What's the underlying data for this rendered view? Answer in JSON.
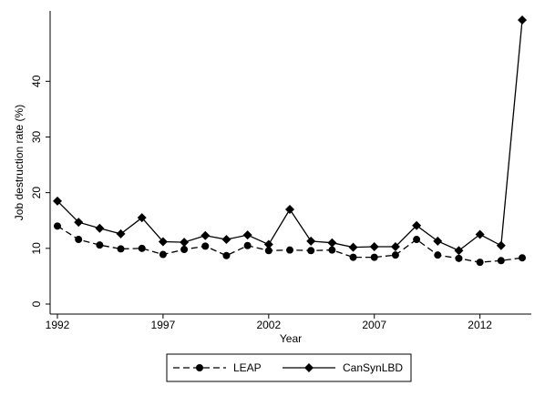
{
  "chart_data": {
    "type": "line",
    "title": "",
    "xlabel": "Year",
    "ylabel": "Job destruction rate (%)",
    "x": [
      1992,
      1993,
      1994,
      1995,
      1996,
      1997,
      1998,
      1999,
      2000,
      2001,
      2002,
      2003,
      2004,
      2005,
      2006,
      2007,
      2008,
      2009,
      2010,
      2011,
      2012,
      2013,
      2014
    ],
    "xlim": [
      1992,
      2014
    ],
    "ylim": [
      0,
      51
    ],
    "x_ticks": [
      1992,
      1997,
      2002,
      2007,
      2012
    ],
    "x_tick_labels": [
      "1992",
      "1997",
      "2002",
      "2007",
      "2012"
    ],
    "y_ticks": [
      0,
      10,
      20,
      30,
      40
    ],
    "y_tick_labels": [
      "0",
      "10",
      "20",
      "30",
      "40"
    ],
    "grid": false,
    "legend_position": "bottom",
    "series": [
      {
        "name": "LEAP",
        "line_style": "dashed",
        "marker": "circle",
        "color": "#000000",
        "values": [
          14.0,
          11.6,
          10.6,
          9.9,
          10.0,
          8.9,
          9.8,
          10.4,
          8.7,
          10.5,
          9.6,
          9.7,
          9.6,
          9.7,
          8.4,
          8.4,
          8.8,
          11.6,
          8.8,
          8.2,
          7.5,
          7.8,
          8.3
        ]
      },
      {
        "name": "CanSynLBD",
        "line_style": "solid",
        "marker": "diamond",
        "color": "#000000",
        "values": [
          18.5,
          14.7,
          13.6,
          12.6,
          15.5,
          11.2,
          11.1,
          12.3,
          11.6,
          12.4,
          10.7,
          17.0,
          11.3,
          11.0,
          10.2,
          10.3,
          10.3,
          14.1,
          11.3,
          9.6,
          12.5,
          10.5,
          51.0
        ]
      }
    ]
  }
}
